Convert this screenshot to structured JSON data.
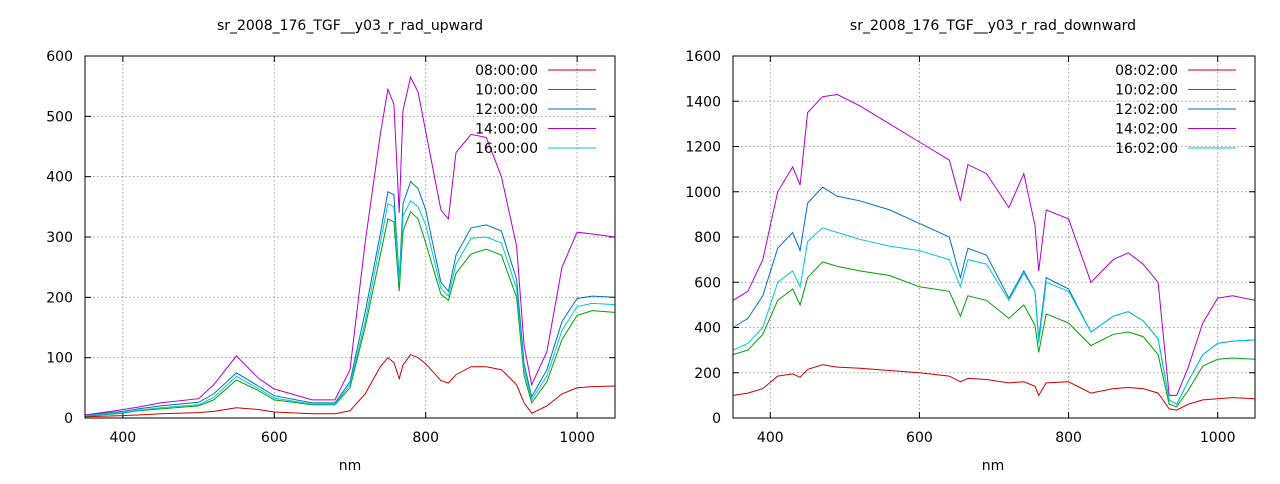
{
  "chart_data": [
    {
      "type": "line",
      "title": "sr_2008_176_TGF__y03_r_rad_upward",
      "xlabel": "nm",
      "ylabel": "",
      "xlim": [
        350,
        1050
      ],
      "ylim": [
        0,
        600
      ],
      "xticks": [
        400,
        600,
        800,
        1000
      ],
      "yticks": [
        0,
        100,
        200,
        300,
        400,
        500,
        600
      ],
      "grid": true,
      "legend_position": "top-right",
      "x": [
        350,
        400,
        420,
        450,
        500,
        520,
        550,
        580,
        600,
        650,
        680,
        700,
        720,
        740,
        750,
        758,
        765,
        770,
        780,
        790,
        800,
        820,
        830,
        840,
        860,
        880,
        900,
        920,
        930,
        940,
        960,
        980,
        1000,
        1020,
        1050
      ],
      "series": [
        {
          "name": "08:00:00",
          "color": "#cc0000",
          "values": [
            2,
            4,
            5,
            7,
            9,
            11,
            17,
            14,
            10,
            7,
            7,
            12,
            40,
            85,
            100,
            92,
            65,
            88,
            105,
            100,
            90,
            62,
            58,
            72,
            85,
            85,
            80,
            55,
            25,
            8,
            20,
            40,
            50,
            52,
            53
          ]
        },
        {
          "name": "10:00:00",
          "color": "#00a000",
          "values": [
            3,
            8,
            12,
            15,
            20,
            30,
            63,
            45,
            30,
            22,
            22,
            50,
            150,
            270,
            330,
            325,
            210,
            310,
            342,
            330,
            290,
            205,
            195,
            240,
            272,
            280,
            270,
            200,
            70,
            25,
            60,
            130,
            170,
            178,
            175
          ]
        },
        {
          "name": "12:00:00",
          "color": "#0070c0",
          "values": [
            5,
            11,
            15,
            20,
            26,
            40,
            75,
            52,
            37,
            25,
            25,
            60,
            175,
            305,
            375,
            370,
            230,
            355,
            392,
            380,
            345,
            225,
            210,
            270,
            315,
            320,
            310,
            230,
            90,
            35,
            80,
            160,
            198,
            202,
            200
          ]
        },
        {
          "name": "14:00:00",
          "color": "#b000d0",
          "values": [
            5,
            14,
            18,
            25,
            32,
            55,
            103,
            65,
            48,
            30,
            30,
            80,
            290,
            470,
            545,
            520,
            340,
            510,
            565,
            540,
            475,
            345,
            330,
            440,
            470,
            465,
            400,
            285,
            120,
            55,
            110,
            250,
            308,
            305,
            300
          ]
        },
        {
          "name": "16:00:00",
          "color": "#00c8d8",
          "values": [
            4,
            9,
            13,
            17,
            22,
            34,
            69,
            48,
            33,
            23,
            23,
            55,
            160,
            290,
            355,
            350,
            225,
            335,
            360,
            350,
            320,
            215,
            202,
            255,
            298,
            300,
            290,
            215,
            80,
            30,
            70,
            145,
            185,
            190,
            188
          ]
        }
      ]
    },
    {
      "type": "line",
      "title": "sr_2008_176_TGF__y03_r_rad_downward",
      "xlabel": "nm",
      "ylabel": "",
      "xlim": [
        350,
        1050
      ],
      "ylim": [
        0,
        1600
      ],
      "xticks": [
        400,
        600,
        800,
        1000
      ],
      "yticks": [
        0,
        200,
        400,
        600,
        800,
        1000,
        1200,
        1400,
        1600
      ],
      "grid": true,
      "legend_position": "top-right",
      "x": [
        350,
        370,
        390,
        410,
        430,
        440,
        450,
        470,
        490,
        520,
        560,
        600,
        640,
        655,
        665,
        690,
        720,
        740,
        755,
        760,
        770,
        800,
        830,
        860,
        880,
        900,
        920,
        935,
        945,
        960,
        980,
        1000,
        1020,
        1050
      ],
      "series": [
        {
          "name": "08:02:00",
          "color": "#cc0000",
          "values": [
            100,
            110,
            130,
            185,
            195,
            180,
            215,
            235,
            225,
            220,
            210,
            200,
            185,
            160,
            175,
            170,
            155,
            160,
            140,
            100,
            155,
            160,
            110,
            130,
            135,
            130,
            110,
            40,
            35,
            60,
            80,
            85,
            90,
            85
          ]
        },
        {
          "name": "10:02:00",
          "color": "#00a000",
          "values": [
            280,
            300,
            370,
            520,
            570,
            500,
            620,
            690,
            670,
            650,
            630,
            580,
            560,
            450,
            540,
            520,
            440,
            500,
            410,
            290,
            460,
            420,
            320,
            370,
            380,
            360,
            280,
            60,
            50,
            120,
            230,
            260,
            265,
            260
          ]
        },
        {
          "name": "12:02:00",
          "color": "#0070c0",
          "values": [
            400,
            440,
            540,
            750,
            820,
            740,
            950,
            1020,
            980,
            960,
            920,
            860,
            800,
            620,
            750,
            720,
            530,
            650,
            560,
            350,
            620,
            570,
            380,
            450,
            470,
            430,
            350,
            80,
            60,
            160,
            280,
            330,
            340,
            345
          ]
        },
        {
          "name": "14:02:00",
          "color": "#b000d0",
          "values": [
            520,
            560,
            700,
            1000,
            1110,
            1030,
            1350,
            1420,
            1430,
            1380,
            1300,
            1220,
            1140,
            960,
            1120,
            1080,
            930,
            1080,
            850,
            650,
            920,
            880,
            600,
            700,
            730,
            680,
            600,
            100,
            100,
            220,
            420,
            530,
            540,
            520
          ]
        },
        {
          "name": "16:02:00",
          "color": "#00c8d8",
          "values": [
            300,
            330,
            400,
            600,
            650,
            580,
            780,
            840,
            820,
            790,
            760,
            740,
            700,
            580,
            700,
            680,
            520,
            640,
            560,
            330,
            600,
            560,
            380,
            450,
            470,
            430,
            350,
            80,
            60,
            160,
            280,
            330,
            340,
            345
          ]
        }
      ]
    }
  ]
}
